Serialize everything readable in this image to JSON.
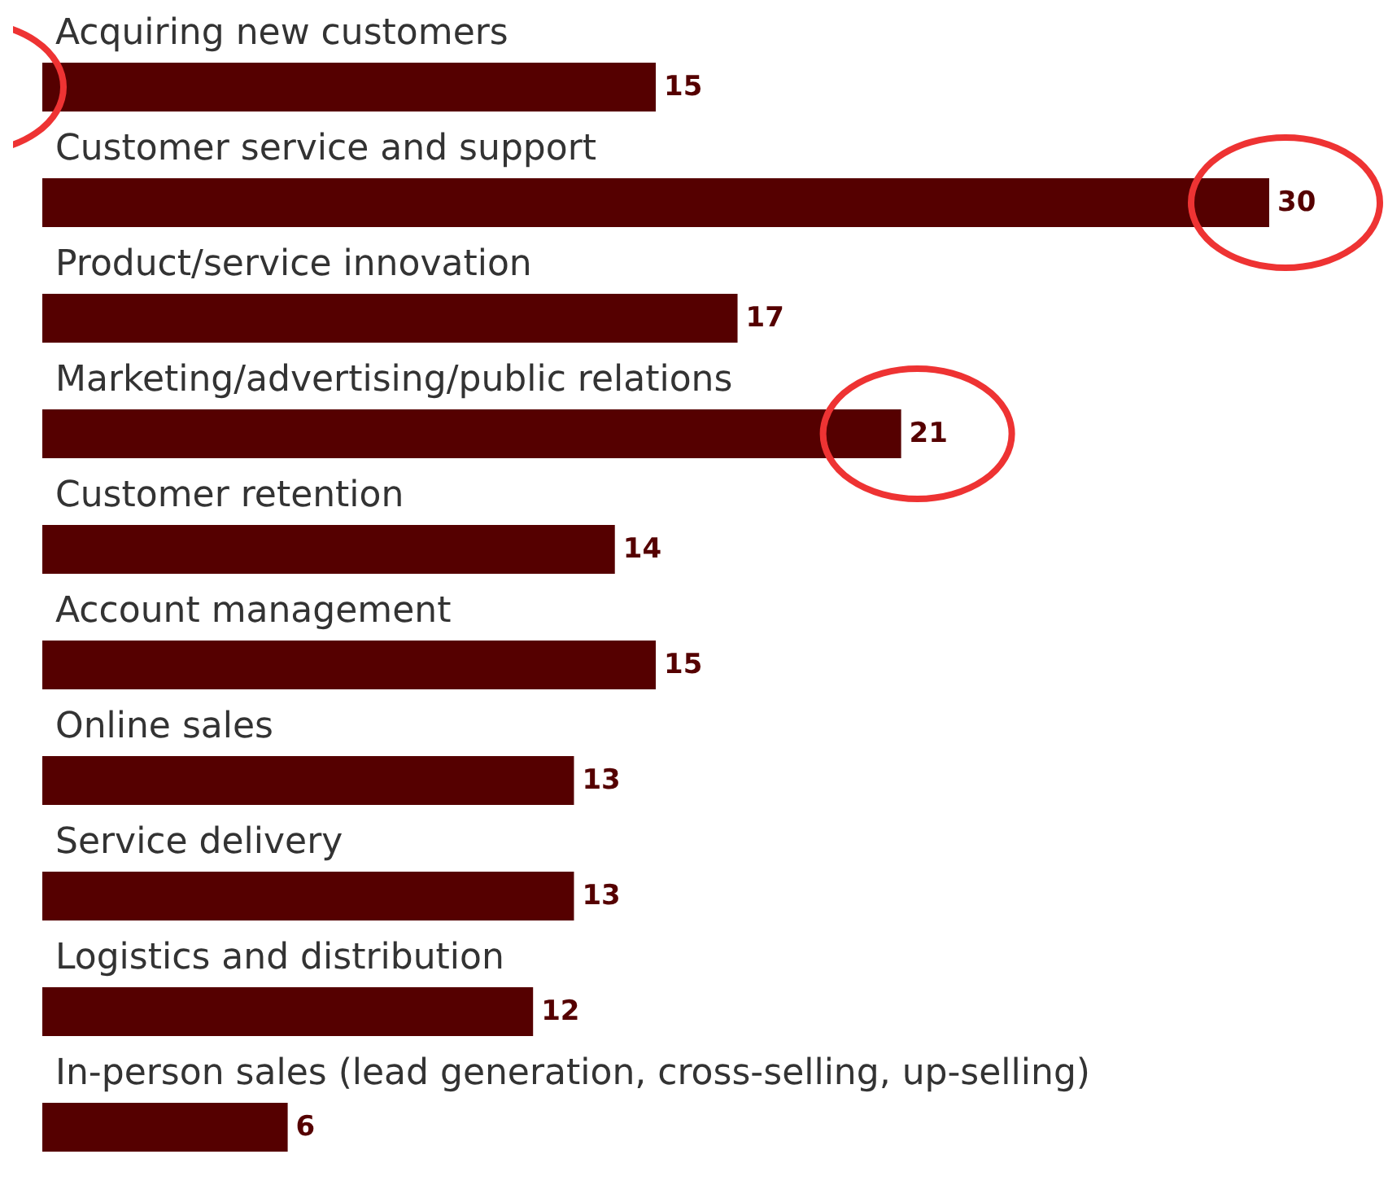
{
  "chart_data": {
    "type": "bar",
    "orientation": "horizontal",
    "categories": [
      "Acquiring new customers",
      "Customer service and support",
      "Product/service innovation",
      "Marketing/advertising/public relations",
      "Customer retention",
      "Account management",
      "Online sales",
      "Service delivery",
      "Logistics and distribution",
      "In-person sales (lead generation, cross-selling, up-selling)"
    ],
    "values": [
      15,
      30,
      17,
      21,
      14,
      15,
      13,
      13,
      12,
      6
    ],
    "color": "#550000",
    "data_labels": true
  }
}
